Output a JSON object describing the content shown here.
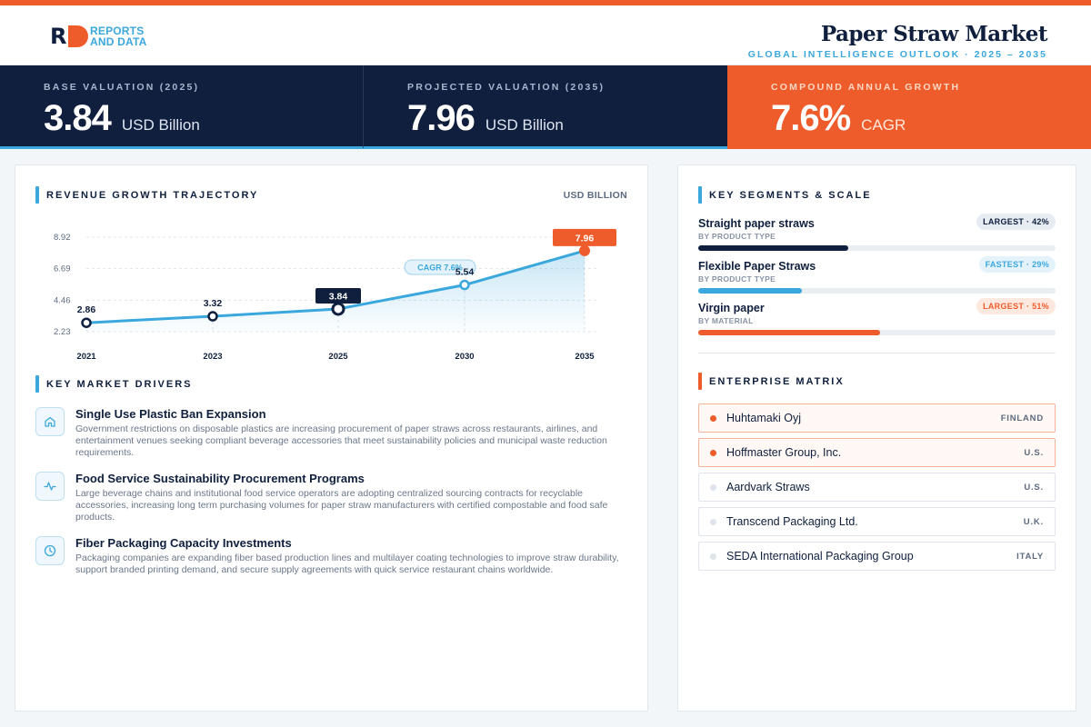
{
  "header": {
    "logo_line1": "REPORTS",
    "logo_line2": "AND DATA",
    "title": "Paper Straw Market",
    "subtitle": "GLOBAL INTELLIGENCE OUTLOOK  ·  2025 – 2035"
  },
  "kpis": [
    {
      "label": "BASE VALUATION (2025)",
      "value": "3.84",
      "unit": "USD Billion"
    },
    {
      "label": "PROJECTED VALUATION (2035)",
      "value": "7.96",
      "unit": "USD Billion"
    },
    {
      "label": "COMPOUND ANNUAL GROWTH",
      "value": "7.6%",
      "unit": "CAGR"
    }
  ],
  "chart_section": {
    "title": "REVENUE GROWTH TRAJECTORY",
    "units": "USD BILLION",
    "cagr_pill": "CAGR 7.6%"
  },
  "chart_data": {
    "type": "line",
    "x": [
      "2021",
      "2023",
      "2025",
      "2030",
      "2035"
    ],
    "values": [
      2.86,
      3.32,
      3.84,
      5.54,
      7.96
    ],
    "data_labels": [
      "2.86",
      "3.32",
      "3.84",
      "5.54",
      "7.96"
    ],
    "y_ticks": [
      "8.92",
      "6.69",
      "4.46",
      "2.23"
    ],
    "ylim": [
      2.23,
      8.92
    ],
    "grid": true,
    "highlight": {
      "2025": "base",
      "2035": "projected"
    },
    "colors": {
      "line": "#3aa7dd",
      "base": "#0f1f3d",
      "projected": "#ee5c2b"
    }
  },
  "drivers_section": {
    "title": "KEY MARKET DRIVERS",
    "items": [
      {
        "icon": "home-icon",
        "title": "Single Use Plastic Ban Expansion",
        "text": "Government restrictions on disposable plastics are increasing procurement of paper straws across restaurants, airlines, and entertainment venues seeking compliant beverage accessories that meet sustainability policies and municipal waste reduction requirements."
      },
      {
        "icon": "activity-icon",
        "title": "Food Service Sustainability Procurement Programs",
        "text": "Large beverage chains and institutional food service operators are adopting centralized sourcing contracts for recyclable accessories, increasing long term purchasing volumes for paper straw manufacturers with certified compostable and food safe products."
      },
      {
        "icon": "clock-icon",
        "title": "Fiber Packaging Capacity Investments",
        "text": "Packaging companies are expanding fiber based production lines and multilayer coating technologies to improve straw durability, support branded printing demand, and secure supply agreements with quick service restaurant chains worldwide."
      }
    ]
  },
  "segments_section": {
    "title": "KEY SEGMENTS & SCALE",
    "items": [
      {
        "name": "Straight paper straws",
        "category": "BY PRODUCT TYPE",
        "badge": "LARGEST · 42%",
        "share": 0.42,
        "color": "#0f1f3d"
      },
      {
        "name": "Flexible Paper Straws",
        "category": "BY PRODUCT TYPE",
        "badge": "FASTEST · 29%",
        "share": 0.29,
        "color": "#3aa7dd"
      },
      {
        "name": "Virgin paper",
        "category": "BY MATERIAL",
        "badge": "LARGEST · 51%",
        "share": 0.51,
        "color": "#ee5c2b"
      }
    ]
  },
  "enterprise_section": {
    "title": "ENTERPRISE MATRIX",
    "companies": [
      {
        "name": "Huhtamaki Oyj",
        "country": "FINLAND"
      },
      {
        "name": "Hoffmaster Group, Inc.",
        "country": "U.S."
      },
      {
        "name": "Aardvark Straws",
        "country": "U.S."
      },
      {
        "name": "Transcend Packaging Ltd.",
        "country": "U.K."
      },
      {
        "name": "SEDA International Packaging Group",
        "country": "ITALY"
      }
    ]
  }
}
